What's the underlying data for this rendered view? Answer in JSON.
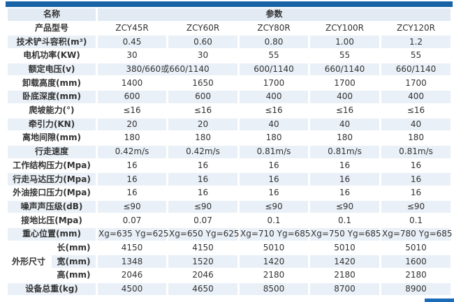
{
  "page": {
    "accent_color": "#1763a6",
    "corner_bar_color": "#1a6cb8",
    "stripe_color": "#e9f0f7"
  },
  "table": {
    "header": {
      "name_label": "名称",
      "param_label": "参数"
    },
    "rows": [
      {
        "label": "产品型号",
        "cells": [
          {
            "t": "ZCY45R"
          },
          {
            "t": "ZCY60R"
          },
          {
            "t": "ZCY80R"
          },
          {
            "t": "ZCY100R"
          },
          {
            "t": "ZCY120R"
          }
        ]
      },
      {
        "label": "技术铲斗容积(m³)",
        "cells": [
          {
            "t": "0.45"
          },
          {
            "t": "0.60"
          },
          {
            "t": "0.80"
          },
          {
            "t": "1.00"
          },
          {
            "t": "1.2"
          }
        ]
      },
      {
        "label": "电机功率(KW)",
        "cells": [
          {
            "t": "30"
          },
          {
            "t": "30"
          },
          {
            "t": "55"
          },
          {
            "t": "55"
          },
          {
            "t": "55"
          }
        ]
      },
      {
        "label": "额定电压(v)",
        "cells": [
          {
            "t": "380/660或660/1140",
            "span": 2
          },
          {
            "t": "600/1140"
          },
          {
            "t": "660/1140"
          },
          {
            "t": "660/1140"
          }
        ]
      },
      {
        "label": "卸载高度(mm)",
        "cells": [
          {
            "t": "1400"
          },
          {
            "t": "1650"
          },
          {
            "t": "1700"
          },
          {
            "t": "1700"
          },
          {
            "t": "1700"
          }
        ]
      },
      {
        "label": "卧底深度(mm)",
        "cells": [
          {
            "t": "600"
          },
          {
            "t": "600"
          },
          {
            "t": "400"
          },
          {
            "t": "400"
          },
          {
            "t": "400"
          }
        ]
      },
      {
        "label": "爬坡能力(°)",
        "cells": [
          {
            "t": "≤16"
          },
          {
            "t": "≤16"
          },
          {
            "t": "≤16"
          },
          {
            "t": "≤16"
          },
          {
            "t": "≤16"
          }
        ]
      },
      {
        "label": "牵引力(KN)",
        "cells": [
          {
            "t": "20"
          },
          {
            "t": "20"
          },
          {
            "t": "40"
          },
          {
            "t": "40"
          },
          {
            "t": "40"
          }
        ]
      },
      {
        "label": "离地间隙(mm)",
        "cells": [
          {
            "t": "180"
          },
          {
            "t": "180"
          },
          {
            "t": "180"
          },
          {
            "t": "180"
          },
          {
            "t": "180"
          }
        ]
      },
      {
        "label": "行走速度",
        "cells": [
          {
            "t": "0.42m/s"
          },
          {
            "t": "0.42m/s"
          },
          {
            "t": "0.81m/s"
          },
          {
            "t": "0.81m/s"
          },
          {
            "t": "0.81m/s"
          }
        ]
      },
      {
        "label": "工作结构压力(Mpa)",
        "cells": [
          {
            "t": "16"
          },
          {
            "t": "16"
          },
          {
            "t": "16"
          },
          {
            "t": "16"
          },
          {
            "t": "16"
          }
        ]
      },
      {
        "label": "行走马达压力(Mpa)",
        "cells": [
          {
            "t": "16"
          },
          {
            "t": "16"
          },
          {
            "t": "16"
          },
          {
            "t": "16"
          },
          {
            "t": "16"
          }
        ]
      },
      {
        "label": "外油接口压力(Mpa)",
        "cells": [
          {
            "t": "16"
          },
          {
            "t": "16"
          },
          {
            "t": "16"
          },
          {
            "t": "16"
          },
          {
            "t": "16"
          }
        ]
      },
      {
        "label": "噪声声压级(dB)",
        "cells": [
          {
            "t": "≤90"
          },
          {
            "t": "≤90"
          },
          {
            "t": "≤90"
          },
          {
            "t": "≤90"
          },
          {
            "t": "≤90"
          }
        ]
      },
      {
        "label": "接地比压(Mpa)",
        "cells": [
          {
            "t": "0.07"
          },
          {
            "t": "0.07"
          },
          {
            "t": "0.1"
          },
          {
            "t": "0.1"
          },
          {
            "t": "0.1"
          }
        ]
      },
      {
        "label": "重心位置(mm)",
        "cells": [
          {
            "t": "Xg=635 Yg=625"
          },
          {
            "t": "Xg=650 Yg=625"
          },
          {
            "t": "Xg=710 Yg=685"
          },
          {
            "t": "Xg=750 Yg=685"
          },
          {
            "t": "Xg=780 Yg=685"
          }
        ]
      },
      {
        "group": "外形尺寸",
        "group_span": 3,
        "sub": true,
        "label": "长(mm)",
        "cells": [
          {
            "t": "4150"
          },
          {
            "t": "4150"
          },
          {
            "t": "5010"
          },
          {
            "t": "5010"
          },
          {
            "t": "5010"
          }
        ]
      },
      {
        "sub": true,
        "label": "宽(mm)",
        "cells": [
          {
            "t": "1348"
          },
          {
            "t": "1520"
          },
          {
            "t": "1420"
          },
          {
            "t": "1420"
          },
          {
            "t": "1600"
          }
        ]
      },
      {
        "sub": true,
        "label": "高(mm)",
        "cells": [
          {
            "t": "2046"
          },
          {
            "t": "2046"
          },
          {
            "t": "2180"
          },
          {
            "t": "2180"
          },
          {
            "t": "2180"
          }
        ]
      },
      {
        "label": "设备总重(kg)",
        "cells": [
          {
            "t": "4500"
          },
          {
            "t": "4650"
          },
          {
            "t": "8500"
          },
          {
            "t": "8700"
          },
          {
            "t": "8900"
          }
        ]
      }
    ]
  }
}
